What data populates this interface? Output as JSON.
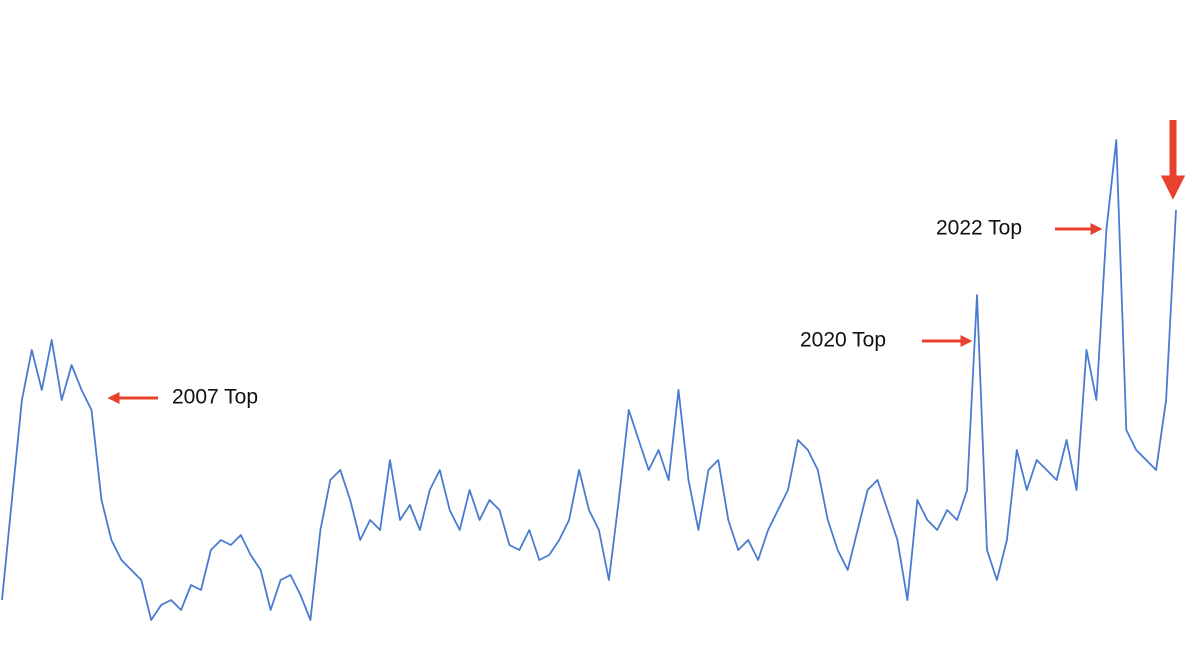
{
  "chart_data": {
    "type": "line",
    "annotations": [
      "2007 Top",
      "2020 Top",
      "2022 Top"
    ],
    "color": "#4a7bd0",
    "values": [
      40,
      140,
      240,
      290,
      250,
      300,
      240,
      275,
      250,
      230,
      140,
      100,
      80,
      70,
      60,
      20,
      35,
      40,
      30,
      55,
      50,
      90,
      100,
      95,
      105,
      85,
      70,
      30,
      60,
      65,
      45,
      20,
      110,
      160,
      170,
      140,
      100,
      120,
      110,
      180,
      120,
      135,
      110,
      150,
      170,
      130,
      110,
      150,
      120,
      140,
      130,
      95,
      90,
      110,
      80,
      85,
      100,
      120,
      170,
      130,
      110,
      60,
      140,
      230,
      200,
      170,
      190,
      160,
      250,
      160,
      110,
      170,
      180,
      120,
      90,
      100,
      80,
      110,
      130,
      150,
      200,
      190,
      170,
      120,
      90,
      70,
      110,
      150,
      160,
      130,
      100,
      40,
      140,
      120,
      110,
      130,
      120,
      150,
      345,
      90,
      60,
      100,
      190,
      150,
      180,
      170,
      160,
      200,
      150,
      290,
      240,
      410,
      500,
      210,
      190,
      180,
      170,
      240,
      430
    ]
  }
}
